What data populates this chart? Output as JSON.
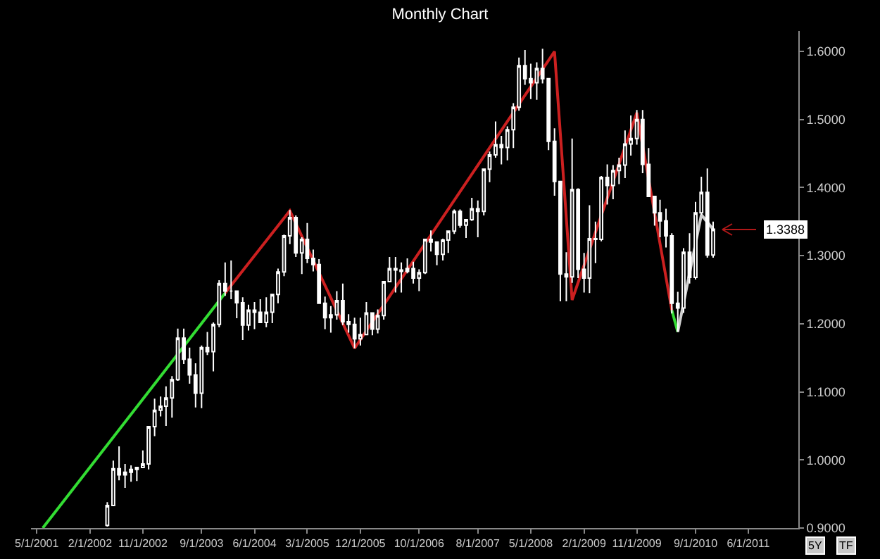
{
  "chart_data": {
    "type": "candlestick",
    "title": "Monthly Chart",
    "x": [
      "2002-05",
      "2002-06",
      "2002-07",
      "2002-08",
      "2002-09",
      "2002-10",
      "2002-11",
      "2002-12",
      "2003-01",
      "2003-02",
      "2003-03",
      "2003-04",
      "2003-05",
      "2003-06",
      "2003-07",
      "2003-08",
      "2003-09",
      "2003-10",
      "2003-11",
      "2003-12",
      "2004-01",
      "2004-02",
      "2004-03",
      "2004-04",
      "2004-05",
      "2004-06",
      "2004-07",
      "2004-08",
      "2004-09",
      "2004-10",
      "2004-11",
      "2004-12",
      "2005-01",
      "2005-02",
      "2005-03",
      "2005-04",
      "2005-05",
      "2005-06",
      "2005-07",
      "2005-08",
      "2005-09",
      "2005-10",
      "2005-11",
      "2005-12",
      "2006-01",
      "2006-02",
      "2006-03",
      "2006-04",
      "2006-05",
      "2006-06",
      "2006-07",
      "2006-08",
      "2006-09",
      "2006-10",
      "2006-11",
      "2006-12",
      "2007-01",
      "2007-02",
      "2007-03",
      "2007-04",
      "2007-05",
      "2007-06",
      "2007-07",
      "2007-08",
      "2007-09",
      "2007-10",
      "2007-11",
      "2007-12",
      "2008-01",
      "2008-02",
      "2008-03",
      "2008-04",
      "2008-05",
      "2008-06",
      "2008-07",
      "2008-08",
      "2008-09",
      "2008-10",
      "2008-11",
      "2008-12",
      "2009-01",
      "2009-02",
      "2009-03",
      "2009-04",
      "2009-05",
      "2009-06",
      "2009-07",
      "2009-08",
      "2009-09",
      "2009-10",
      "2009-11",
      "2009-12",
      "2010-01",
      "2010-02",
      "2010-03",
      "2010-04",
      "2010-05",
      "2010-06",
      "2010-07",
      "2010-08",
      "2010-09",
      "2010-10",
      "2010-11",
      "2010-12"
    ],
    "ohlc": [
      [
        0.904,
        0.938,
        0.902,
        0.933
      ],
      [
        0.933,
        0.999,
        0.932,
        0.987
      ],
      [
        0.987,
        1.02,
        0.97,
        0.978
      ],
      [
        0.978,
        0.994,
        0.959,
        0.982
      ],
      [
        0.982,
        0.992,
        0.968,
        0.986
      ],
      [
        0.986,
        0.99,
        0.969,
        0.989
      ],
      [
        0.989,
        1.014,
        0.988,
        0.994
      ],
      [
        0.994,
        1.05,
        0.986,
        1.049
      ],
      [
        1.049,
        1.09,
        1.035,
        1.073
      ],
      [
        1.073,
        1.093,
        1.064,
        1.079
      ],
      [
        1.079,
        1.108,
        1.05,
        1.091
      ],
      [
        1.091,
        1.123,
        1.062,
        1.118
      ],
      [
        1.118,
        1.193,
        1.116,
        1.179
      ],
      [
        1.179,
        1.193,
        1.141,
        1.148
      ],
      [
        1.148,
        1.165,
        1.112,
        1.125
      ],
      [
        1.125,
        1.142,
        1.077,
        1.098
      ],
      [
        1.098,
        1.168,
        1.076,
        1.165
      ],
      [
        1.165,
        1.188,
        1.154,
        1.159
      ],
      [
        1.159,
        1.202,
        1.13,
        1.199
      ],
      [
        1.199,
        1.264,
        1.195,
        1.259
      ],
      [
        1.259,
        1.29,
        1.241,
        1.248
      ],
      [
        1.248,
        1.293,
        1.236,
        1.248
      ],
      [
        1.248,
        1.248,
        1.208,
        1.231
      ],
      [
        1.231,
        1.239,
        1.176,
        1.198
      ],
      [
        1.198,
        1.228,
        1.19,
        1.22
      ],
      [
        1.22,
        1.232,
        1.192,
        1.217
      ],
      [
        1.217,
        1.236,
        1.201,
        1.202
      ],
      [
        1.202,
        1.239,
        1.195,
        1.217
      ],
      [
        1.217,
        1.244,
        1.201,
        1.243
      ],
      [
        1.243,
        1.281,
        1.23,
        1.276
      ],
      [
        1.276,
        1.331,
        1.27,
        1.329
      ],
      [
        1.329,
        1.367,
        1.317,
        1.356
      ],
      [
        1.356,
        1.359,
        1.298,
        1.304
      ],
      [
        1.304,
        1.327,
        1.273,
        1.324
      ],
      [
        1.324,
        1.348,
        1.289,
        1.296
      ],
      [
        1.296,
        1.309,
        1.277,
        1.287
      ],
      [
        1.287,
        1.295,
        1.23,
        1.23
      ],
      [
        1.23,
        1.24,
        1.192,
        1.209
      ],
      [
        1.209,
        1.226,
        1.187,
        1.213
      ],
      [
        1.213,
        1.248,
        1.206,
        1.234
      ],
      [
        1.234,
        1.259,
        1.198,
        1.203
      ],
      [
        1.203,
        1.214,
        1.187,
        1.199
      ],
      [
        1.199,
        1.209,
        1.164,
        1.178
      ],
      [
        1.178,
        1.209,
        1.168,
        1.184
      ],
      [
        1.184,
        1.232,
        1.183,
        1.216
      ],
      [
        1.216,
        1.216,
        1.183,
        1.192
      ],
      [
        1.192,
        1.221,
        1.186,
        1.212
      ],
      [
        1.212,
        1.263,
        1.206,
        1.262
      ],
      [
        1.262,
        1.298,
        1.262,
        1.281
      ],
      [
        1.281,
        1.298,
        1.246,
        1.279
      ],
      [
        1.279,
        1.29,
        1.246,
        1.277
      ],
      [
        1.277,
        1.296,
        1.274,
        1.281
      ],
      [
        1.281,
        1.291,
        1.259,
        1.267
      ],
      [
        1.267,
        1.28,
        1.248,
        1.275
      ],
      [
        1.275,
        1.324,
        1.273,
        1.324
      ],
      [
        1.324,
        1.337,
        1.306,
        1.32
      ],
      [
        1.32,
        1.321,
        1.286,
        1.302
      ],
      [
        1.302,
        1.325,
        1.293,
        1.323
      ],
      [
        1.323,
        1.337,
        1.304,
        1.336
      ],
      [
        1.336,
        1.368,
        1.332,
        1.365
      ],
      [
        1.365,
        1.368,
        1.341,
        1.345
      ],
      [
        1.345,
        1.354,
        1.326,
        1.353
      ],
      [
        1.353,
        1.385,
        1.351,
        1.369
      ],
      [
        1.369,
        1.381,
        1.327,
        1.365
      ],
      [
        1.365,
        1.428,
        1.359,
        1.427
      ],
      [
        1.427,
        1.453,
        1.408,
        1.448
      ],
      [
        1.448,
        1.497,
        1.444,
        1.463
      ],
      [
        1.463,
        1.476,
        1.434,
        1.459
      ],
      [
        1.459,
        1.49,
        1.44,
        1.485
      ],
      [
        1.485,
        1.524,
        1.458,
        1.518
      ],
      [
        1.518,
        1.591,
        1.513,
        1.579
      ],
      [
        1.579,
        1.602,
        1.551,
        1.56
      ],
      [
        1.56,
        1.582,
        1.53,
        1.554
      ],
      [
        1.554,
        1.584,
        1.529,
        1.575
      ],
      [
        1.575,
        1.604,
        1.553,
        1.56
      ],
      [
        1.56,
        1.561,
        1.455,
        1.468
      ],
      [
        1.468,
        1.487,
        1.388,
        1.409
      ],
      [
        1.409,
        1.409,
        1.233,
        1.273
      ],
      [
        1.273,
        1.305,
        1.233,
        1.269
      ],
      [
        1.269,
        1.472,
        1.26,
        1.397
      ],
      [
        1.397,
        1.399,
        1.267,
        1.28
      ],
      [
        1.28,
        1.304,
        1.246,
        1.267
      ],
      [
        1.267,
        1.374,
        1.245,
        1.325
      ],
      [
        1.325,
        1.35,
        1.289,
        1.324
      ],
      [
        1.324,
        1.417,
        1.321,
        1.415
      ],
      [
        1.415,
        1.434,
        1.375,
        1.403
      ],
      [
        1.403,
        1.433,
        1.383,
        1.425
      ],
      [
        1.425,
        1.444,
        1.405,
        1.433
      ],
      [
        1.433,
        1.484,
        1.414,
        1.464
      ],
      [
        1.464,
        1.506,
        1.447,
        1.472
      ],
      [
        1.472,
        1.514,
        1.463,
        1.5
      ],
      [
        1.5,
        1.514,
        1.421,
        1.434
      ],
      [
        1.434,
        1.458,
        1.386,
        1.387
      ],
      [
        1.387,
        1.388,
        1.344,
        1.363
      ],
      [
        1.363,
        1.382,
        1.327,
        1.351
      ],
      [
        1.351,
        1.369,
        1.312,
        1.329
      ],
      [
        1.329,
        1.333,
        1.215,
        1.23
      ],
      [
        1.23,
        1.247,
        1.188,
        1.223
      ],
      [
        1.223,
        1.311,
        1.216,
        1.305
      ],
      [
        1.305,
        1.333,
        1.259,
        1.268
      ],
      [
        1.268,
        1.379,
        1.265,
        1.363
      ],
      [
        1.363,
        1.416,
        1.36,
        1.393
      ],
      [
        1.393,
        1.428,
        1.297,
        1.301
      ],
      [
        1.301,
        1.35,
        1.297,
        1.3388
      ]
    ],
    "series": [
      {
        "type": "line",
        "color": "#33dd33",
        "x": [
          "2001-06",
          "2004-01",
          "2004-02",
          "2010-05",
          "2010-06"
        ],
        "values": [
          0.9,
          1.245,
          null,
          1.22,
          1.188
        ]
      },
      {
        "type": "line",
        "color": "#cc2020",
        "x": [
          "2004-01",
          "2004-12",
          "2005-11",
          "2008-09",
          "2008-12",
          "2009-11",
          "2010-05"
        ],
        "values": [
          1.245,
          1.366,
          1.164,
          1.6,
          1.235,
          1.51,
          1.22
        ]
      },
      {
        "type": "line",
        "color": "#d0d0d0",
        "x": [
          "2010-06",
          "2010-10",
          "2010-12"
        ],
        "values": [
          1.188,
          1.36,
          1.3388
        ]
      }
    ],
    "xlim": [
      "2001-04-01",
      "2012-02-15"
    ],
    "xticks": [
      {
        "value": "2001-05-01",
        "label": "5/1/2001"
      },
      {
        "value": "2002-02-01",
        "label": "2/1/2002"
      },
      {
        "value": "2002-11-01",
        "label": "11/1/2002"
      },
      {
        "value": "2003-09-01",
        "label": "9/1/2003"
      },
      {
        "value": "2004-06-01",
        "label": "6/1/2004"
      },
      {
        "value": "2005-03-01",
        "label": "3/1/2005"
      },
      {
        "value": "2005-12-01",
        "label": "12/1/2005"
      },
      {
        "value": "2006-10-01",
        "label": "10/1/2006"
      },
      {
        "value": "2007-08-01",
        "label": "8/1/2007"
      },
      {
        "value": "2008-05-01",
        "label": "5/1/2008"
      },
      {
        "value": "2009-02-01",
        "label": "2/1/2009"
      },
      {
        "value": "2009-11-01",
        "label": "11/1/2009"
      },
      {
        "value": "2010-09-01",
        "label": "9/1/2010"
      },
      {
        "value": "2011-06-01",
        "label": "6/1/2011"
      }
    ],
    "ylim": [
      0.9,
      1.63
    ],
    "yticks": [
      {
        "value": 0.9,
        "label": "0.9000"
      },
      {
        "value": 1.0,
        "label": "1.0000"
      },
      {
        "value": 1.1,
        "label": "1.1000"
      },
      {
        "value": 1.2,
        "label": "1.2000"
      },
      {
        "value": 1.3,
        "label": "1.3000"
      },
      {
        "value": 1.4,
        "label": "1.4000"
      },
      {
        "value": 1.5,
        "label": "1.5000"
      },
      {
        "value": 1.6,
        "label": "1.6000"
      }
    ],
    "annotations": [
      {
        "text": "1.3388",
        "x": "2010-12",
        "y": 1.3388
      },
      "5Y",
      "TF"
    ]
  }
}
